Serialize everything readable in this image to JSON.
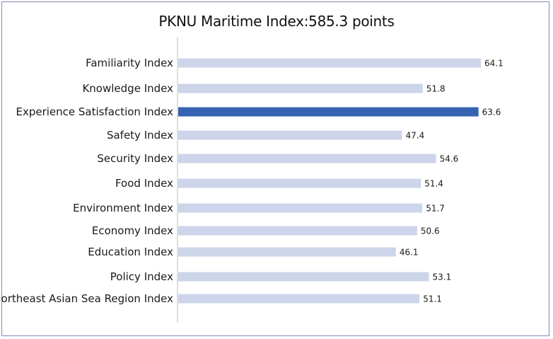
{
  "chart_data": {
    "type": "bar",
    "orientation": "horizontal",
    "title": "PKNU Maritime Index:585.3 points",
    "categories": [
      "Familiarity Index",
      "Knowledge Index",
      "Experience Satisfaction Index",
      "Safety Index",
      "Security Index",
      "Food Index",
      "Environment Index",
      "Economy Index",
      "Education Index",
      "Policy Index",
      "Northeast Asian Sea Region Index"
    ],
    "values": [
      64.1,
      51.8,
      63.6,
      47.4,
      54.6,
      51.4,
      51.7,
      50.6,
      46.1,
      53.1,
      51.1
    ],
    "value_labels": [
      "64.1",
      "51.8",
      "63.6",
      "47.4",
      "54.6",
      "51.4",
      "51.7",
      "50.6",
      "46.1",
      "53.1",
      "51.1"
    ],
    "highlight_index": 2,
    "xlim": [
      0,
      66
    ],
    "grid": false,
    "colors": {
      "bar": "#cdd5ea",
      "highlight": "#3563b0",
      "axis": "#bfbfbf",
      "border": "#8a84bf"
    }
  }
}
